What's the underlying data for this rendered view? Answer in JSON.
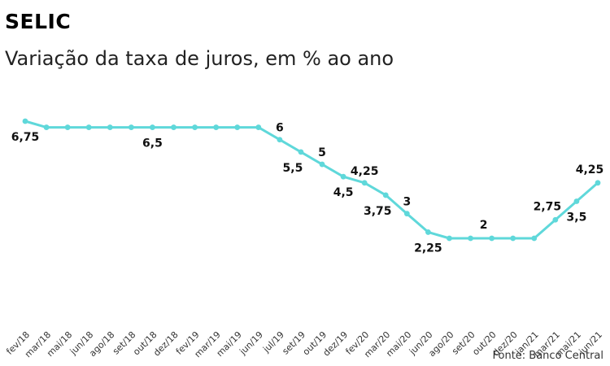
{
  "header": {
    "title": "SELIC",
    "subtitle": "Variação da taxa de juros, em % ao ano"
  },
  "footer": {
    "source": "Fonte: Banco Central"
  },
  "colors": {
    "line": "#5fd8da",
    "marker": "#5fd8da",
    "label": "#111111"
  },
  "chart_data": {
    "type": "line",
    "title": "SELIC",
    "subtitle": "Variação da taxa de juros, em % ao ano",
    "xlabel": "",
    "ylabel": "",
    "grid": false,
    "ylim": [
      0,
      7
    ],
    "categories": [
      "fev/18",
      "mar/18",
      "mai/18",
      "jun/18",
      "ago/18",
      "set/18",
      "out/18",
      "dez/18",
      "fev/19",
      "mar/19",
      "mai/19",
      "jun/19",
      "jul/19",
      "set/19",
      "out/19",
      "dez/19",
      "fev/20",
      "mar/20",
      "mai/20",
      "jun/20",
      "ago/20",
      "set/20",
      "out/20",
      "dez/20",
      "jan/21",
      "mar/21",
      "mai/21",
      "jun/21"
    ],
    "series": [
      {
        "values": [
          6.75,
          6.5,
          6.5,
          6.5,
          6.5,
          6.5,
          6.5,
          6.5,
          6.5,
          6.5,
          6.5,
          6.5,
          6,
          5.5,
          5,
          4.5,
          4.25,
          3.75,
          3,
          2.25,
          2,
          2,
          2,
          2,
          2,
          2.75,
          3.5,
          4.25
        ]
      }
    ],
    "data_labels": [
      {
        "index": 0,
        "text": "6,75",
        "pos": "below"
      },
      {
        "index": 6,
        "text": "6,5",
        "pos": "below"
      },
      {
        "index": 12,
        "text": "6",
        "pos": "above"
      },
      {
        "index": 13,
        "text": "5,5",
        "pos": "below-left"
      },
      {
        "index": 14,
        "text": "5",
        "pos": "above"
      },
      {
        "index": 15,
        "text": "4,5",
        "pos": "below"
      },
      {
        "index": 16,
        "text": "4,25",
        "pos": "above"
      },
      {
        "index": 17,
        "text": "3,75",
        "pos": "below-left"
      },
      {
        "index": 18,
        "text": "3",
        "pos": "above"
      },
      {
        "index": 19,
        "text": "2,25",
        "pos": "below"
      },
      {
        "index": 22,
        "text": "2",
        "pos": "above-left"
      },
      {
        "index": 25,
        "text": "2,75",
        "pos": "above-left"
      },
      {
        "index": 26,
        "text": "3,5",
        "pos": "below"
      },
      {
        "index": 27,
        "text": "4,25",
        "pos": "above-left"
      }
    ]
  }
}
